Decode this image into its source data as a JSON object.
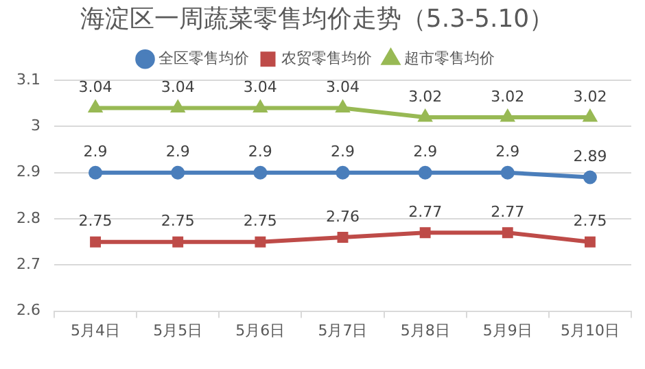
{
  "chart_data": {
    "type": "line",
    "title": "海淀区一周蔬菜零售均价走势（5.3-5.10）",
    "categories": [
      "5月4日",
      "5月5日",
      "5月6日",
      "5月7日",
      "5月8日",
      "5月9日",
      "5月10日"
    ],
    "series": [
      {
        "name": "全区零售均价",
        "color": "#4a7ebb",
        "marker": "circle",
        "values": [
          2.9,
          2.9,
          2.9,
          2.9,
          2.9,
          2.9,
          2.89
        ]
      },
      {
        "name": "农贸零售均价",
        "color": "#be4b48",
        "marker": "square",
        "values": [
          2.75,
          2.75,
          2.75,
          2.76,
          2.77,
          2.77,
          2.75
        ]
      },
      {
        "name": "超市零售均价",
        "color": "#98b954",
        "marker": "triangle",
        "values": [
          3.04,
          3.04,
          3.04,
          3.04,
          3.02,
          3.02,
          3.02
        ]
      }
    ],
    "ylim": [
      2.6,
      3.1
    ],
    "yticks": [
      2.6,
      2.7,
      2.8,
      2.9,
      3,
      3.1
    ],
    "grid": "y",
    "legend": "top",
    "data_labels": true
  }
}
